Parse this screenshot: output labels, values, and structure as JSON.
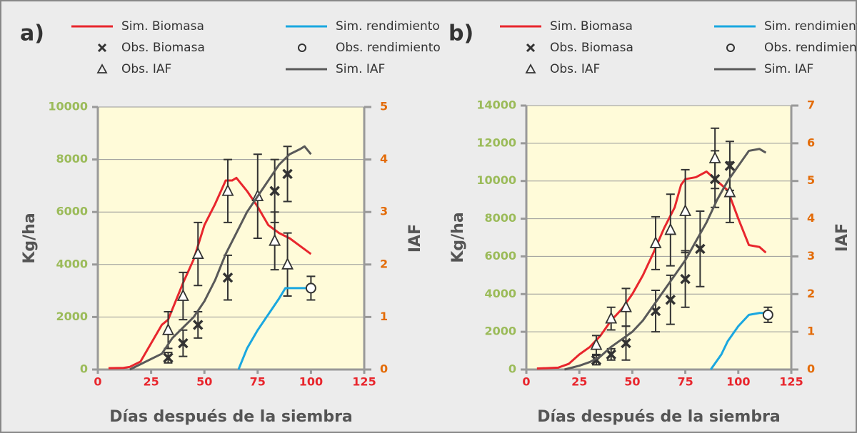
{
  "chart_data": [
    {
      "type": "line",
      "label": "a)",
      "xlabel": "Días después de la siembra",
      "ylabel": "Kg/ha",
      "y2label": "IAF",
      "xlim": [
        0,
        125
      ],
      "xticks": [
        0,
        25,
        50,
        75,
        100,
        125
      ],
      "ylim": [
        0,
        10000
      ],
      "yticks": [
        0,
        2000,
        4000,
        6000,
        8000,
        10000
      ],
      "y2lim": [
        0,
        5
      ],
      "y2ticks": [
        0,
        1,
        2,
        3,
        4,
        5
      ],
      "grid": true,
      "series": [
        {
          "name": "Sim. Biomasa",
          "color": "#e8262d",
          "style": "line",
          "x": [
            5,
            12,
            15,
            20,
            25,
            30,
            33,
            35,
            40,
            45,
            50,
            55,
            60,
            63,
            65,
            70,
            75,
            80,
            85,
            90,
            95,
            100
          ],
          "values": [
            50,
            60,
            100,
            300,
            1000,
            1700,
            1900,
            2300,
            3300,
            4200,
            5500,
            6300,
            7200,
            7200,
            7300,
            6800,
            6200,
            5500,
            5200,
            5000,
            4700,
            4400
          ]
        },
        {
          "name": "Obs. Biomasa",
          "color": "#333333",
          "style": "x",
          "x": [
            33,
            40,
            47,
            61,
            83,
            89
          ],
          "values": [
            450,
            1000,
            1700,
            3500,
            6800,
            7450
          ],
          "errors": [
            200,
            500,
            500,
            850,
            1200,
            1050
          ]
        },
        {
          "name": "Obs. IAF",
          "color": "#333333",
          "style": "triangle",
          "axis": "y2",
          "x": [
            33,
            40,
            47,
            61,
            75,
            83,
            89
          ],
          "values": [
            0.75,
            1.4,
            2.2,
            3.4,
            3.3,
            2.45,
            2.0
          ],
          "errors": [
            0.35,
            0.45,
            0.6,
            0.6,
            0.8,
            0.55,
            0.6
          ]
        },
        {
          "name": "Sim. rendimiento",
          "color": "#1aa7e0",
          "style": "line",
          "x": [
            66,
            70,
            75,
            80,
            85,
            88,
            92,
            100
          ],
          "values": [
            0,
            800,
            1500,
            2100,
            2700,
            3100,
            3100,
            3100
          ]
        },
        {
          "name": "Obs. rendimiento",
          "color": "#333333",
          "style": "circle",
          "x": [
            100
          ],
          "values": [
            3100
          ],
          "errors": [
            450
          ]
        },
        {
          "name": "Sim. IAF",
          "color": "#595959",
          "style": "line",
          "axis": "y2",
          "x": [
            15,
            20,
            25,
            30,
            35,
            40,
            45,
            50,
            55,
            60,
            65,
            70,
            75,
            80,
            85,
            90,
            95,
            97,
            100
          ],
          "values": [
            0,
            0.1,
            0.2,
            0.3,
            0.6,
            0.8,
            1.0,
            1.3,
            1.7,
            2.2,
            2.6,
            3.0,
            3.3,
            3.6,
            3.9,
            4.1,
            4.2,
            4.25,
            4.1
          ]
        }
      ]
    },
    {
      "type": "line",
      "label": "b)",
      "xlabel": "Días después de la siembra",
      "ylabel": "Kg/ha",
      "y2label": "IAF",
      "xlim": [
        0,
        125
      ],
      "xticks": [
        0,
        25,
        50,
        75,
        100,
        125
      ],
      "ylim": [
        0,
        14000
      ],
      "yticks": [
        0,
        2000,
        4000,
        6000,
        8000,
        10000,
        12000,
        14000
      ],
      "y2lim": [
        0,
        7
      ],
      "y2ticks": [
        0,
        1,
        2,
        3,
        4,
        5,
        6,
        7
      ],
      "grid": true,
      "series": [
        {
          "name": "Sim. Biomasa",
          "color": "#e8262d",
          "style": "line",
          "x": [
            5,
            15,
            20,
            25,
            30,
            35,
            40,
            45,
            50,
            55,
            60,
            65,
            70,
            73,
            75,
            80,
            85,
            90,
            95,
            100,
            105,
            110,
            113
          ],
          "values": [
            50,
            100,
            300,
            800,
            1200,
            1800,
            2600,
            3200,
            4000,
            5000,
            6200,
            7500,
            8600,
            9800,
            10100,
            10200,
            10500,
            10000,
            9500,
            8000,
            6600,
            6500,
            6200
          ]
        },
        {
          "name": "Obs. Biomasa",
          "color": "#333333",
          "style": "x",
          "x": [
            33,
            40,
            47,
            61,
            68,
            75,
            82,
            89,
            96
          ],
          "values": [
            500,
            800,
            1400,
            3100,
            3700,
            4800,
            6400,
            10100,
            10800
          ],
          "errors": [
            250,
            300,
            900,
            1100,
            1300,
            1500,
            2000,
            1500,
            1300
          ]
        },
        {
          "name": "Obs. IAF",
          "color": "#333333",
          "style": "triangle",
          "axis": "y2",
          "x": [
            33,
            40,
            47,
            61,
            68,
            75,
            89,
            96
          ],
          "values": [
            0.65,
            1.35,
            1.65,
            3.35,
            3.7,
            4.2,
            5.6,
            4.7
          ],
          "errors": [
            0.25,
            0.3,
            0.5,
            0.7,
            0.95,
            1.1,
            0.8,
            0.8
          ]
        },
        {
          "name": "Sim. rendimiento",
          "color": "#1aa7e0",
          "style": "line",
          "x": [
            87,
            92,
            95,
            100,
            105,
            110,
            113
          ],
          "values": [
            0,
            800,
            1500,
            2300,
            2900,
            3000,
            3000
          ]
        },
        {
          "name": "Obs. rendimiento",
          "color": "#333333",
          "style": "circle",
          "x": [
            114
          ],
          "values": [
            2900
          ],
          "errors": [
            400
          ]
        },
        {
          "name": "Sim. IAF",
          "color": "#595959",
          "style": "line",
          "axis": "y2",
          "x": [
            18,
            25,
            30,
            35,
            40,
            45,
            50,
            55,
            60,
            65,
            70,
            75,
            80,
            85,
            90,
            95,
            100,
            105,
            110,
            113
          ],
          "values": [
            0,
            0.1,
            0.2,
            0.35,
            0.6,
            0.8,
            1.0,
            1.3,
            1.7,
            2.1,
            2.5,
            2.9,
            3.4,
            3.9,
            4.5,
            5.0,
            5.4,
            5.8,
            5.85,
            5.75
          ]
        }
      ]
    }
  ]
}
